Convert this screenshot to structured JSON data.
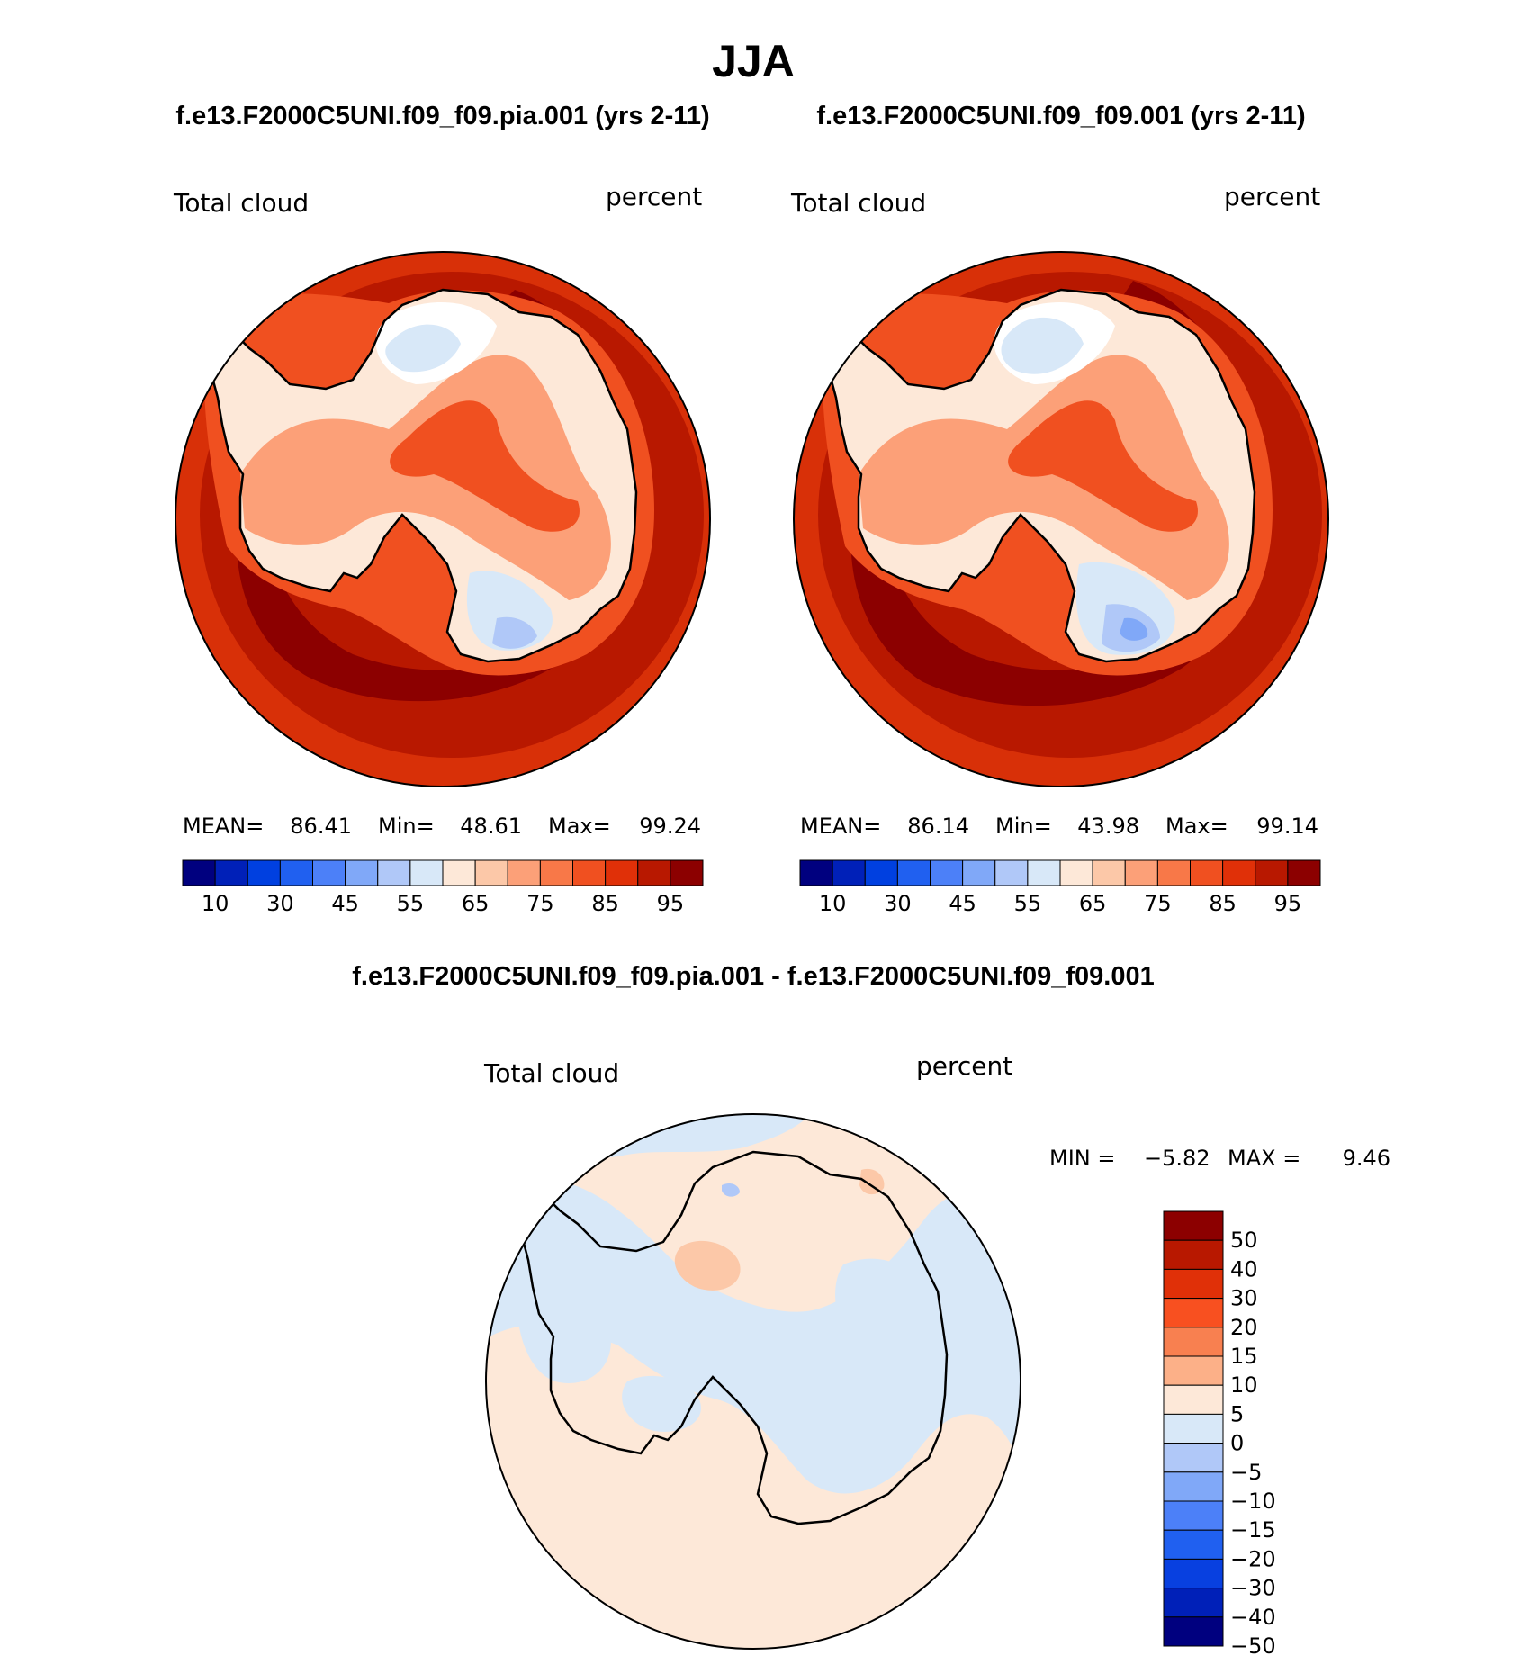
{
  "season_title": "JJA",
  "panel_left": {
    "case_title": "f.e13.F2000C5UNI.f09_f09.pia.001 (yrs 2-11)",
    "field": "Total cloud",
    "units": "percent",
    "stats": {
      "mean_label": "MEAN=",
      "mean": "86.41",
      "min_label": "Min=",
      "min": "48.61",
      "max_label": "Max=",
      "max": "99.24"
    }
  },
  "panel_right": {
    "case_title": "f.e13.F2000C5UNI.f09_f09.001 (yrs 2-11)",
    "field": "Total cloud",
    "units": "percent",
    "stats": {
      "mean_label": "MEAN=",
      "mean": "86.14",
      "min_label": "Min=",
      "min": "43.98",
      "max_label": "Max=",
      "max": "99.14"
    }
  },
  "colorbar_abs": {
    "colors": [
      "#00007f",
      "#0020b8",
      "#0040e0",
      "#2060f0",
      "#4c80f8",
      "#80a8f8",
      "#b0c8f8",
      "#d8e8f8",
      "#fde8d8",
      "#fcc8a8",
      "#fca078",
      "#f87848",
      "#f05020",
      "#e03008",
      "#b81800",
      "#8c0000"
    ],
    "labels": [
      "10",
      "30",
      "45",
      "55",
      "65",
      "75",
      "85",
      "95"
    ]
  },
  "panel_diff": {
    "case_title": "f.e13.F2000C5UNI.f09_f09.pia.001 - f.e13.F2000C5UNI.f09_f09.001",
    "field": "Total cloud",
    "units": "percent",
    "stats": {
      "min_label": "MIN =",
      "min": "−5.82",
      "max_label": "MAX =",
      "max": "9.46"
    }
  },
  "colorbar_diff": {
    "colors": [
      "#8c0000",
      "#b81800",
      "#e03008",
      "#f85020",
      "#f88050",
      "#fcb088",
      "#fde8d8",
      "#d8e8f8",
      "#b0c8f8",
      "#80a8f8",
      "#4c80f8",
      "#2060f0",
      "#0840e0",
      "#0020b8",
      "#00007f"
    ],
    "labels": [
      "50",
      "40",
      "30",
      "20",
      "15",
      "10",
      "5",
      "0",
      "−5",
      "−10",
      "−15",
      "−20",
      "−30",
      "−40",
      "−50"
    ]
  },
  "map_colors": {
    "far_ocean": "#d83008",
    "outer_ocean": "#b81800",
    "storm_band": "#8c0000",
    "coast_band": "#f05020",
    "inland_orange": "#fca078",
    "inland_light": "#fde8d8",
    "inland_white": "#ffffff",
    "inland_blue": "#d8e8f8",
    "inland_blue2": "#b0c8f8",
    "inland_blue3": "#80a8f8",
    "diff_pos": "#fde8d8",
    "diff_neg": "#d8e8f8",
    "diff_pos2": "#fcc8a8",
    "diff_neg2": "#b0c8f8"
  }
}
